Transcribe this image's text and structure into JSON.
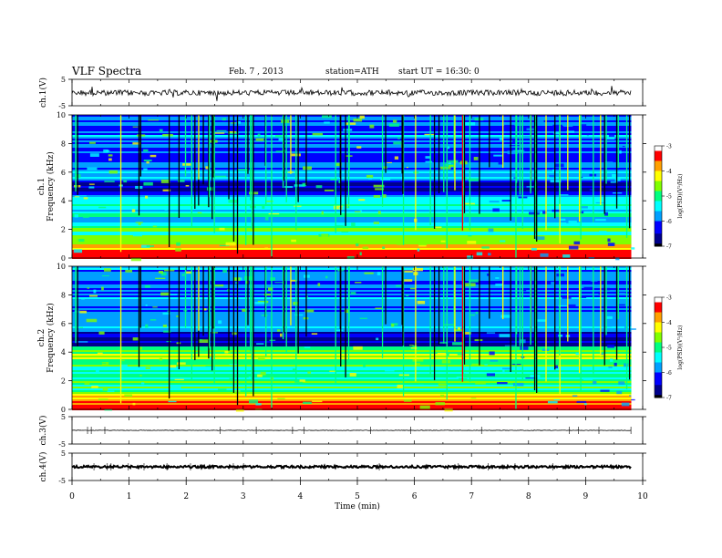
{
  "header": {
    "title": "VLF Spectra",
    "date": "Feb. 7 , 2013",
    "station": "station=ATH",
    "start": "start UT = 16:30: 0"
  },
  "chart_data": {
    "type": "heatmap",
    "title": "VLF Spectra",
    "xlabel": "Time (min)",
    "xlim": [
      0,
      10
    ],
    "x_ticks": [
      "0",
      "1",
      "2",
      "3",
      "4",
      "5",
      "6",
      "7",
      "8",
      "9",
      "10"
    ],
    "data_end_min": 9.8,
    "panels": [
      {
        "id": "ch1-waveform",
        "kind": "waveform",
        "ylabel": "ch.1(V)",
        "ylim": [
          -5,
          5
        ],
        "y_ticks": [
          "5",
          "-5"
        ],
        "level": -0.1,
        "noise": "high"
      },
      {
        "id": "ch1-spectrogram",
        "kind": "spectrogram",
        "ylabel": "ch.1\nFrequency (kHz)",
        "ylim": [
          0,
          10
        ],
        "y_ticks": [
          "10",
          "8",
          "6",
          "4",
          "2",
          "0"
        ],
        "colorbar": {
          "label": "log(PSD)(V²/Hz)",
          "range": [
            -7,
            -3
          ],
          "ticks": [
            "-3",
            "-4",
            "-5",
            "-6",
            "-7"
          ]
        }
      },
      {
        "id": "ch2-spectrogram",
        "kind": "spectrogram",
        "ylabel": "ch.2\nFrequency (kHz)",
        "ylim": [
          0,
          10
        ],
        "y_ticks": [
          "10",
          "8",
          "6",
          "4",
          "2",
          "0"
        ],
        "colorbar": {
          "label": "log(PSD)(V²/Hz)",
          "range": [
            -7,
            -3
          ],
          "ticks": [
            "-3",
            "-4",
            "-5",
            "-6",
            "-7"
          ]
        }
      },
      {
        "id": "ch3-waveform",
        "kind": "waveform",
        "ylabel": "ch.3(V)",
        "ylim": [
          -5,
          5
        ],
        "y_ticks": [
          "5",
          "-5"
        ],
        "level": 0.0,
        "noise": "low"
      },
      {
        "id": "ch4-waveform",
        "kind": "waveform",
        "ylabel": "ch.4(V)",
        "ylim": [
          -5,
          5
        ],
        "y_ticks": [
          "5",
          "-5"
        ],
        "level": 0.0,
        "noise": "thick"
      }
    ]
  },
  "colors": {
    "colormap": [
      "#000000",
      "#00008c",
      "#0000ff",
      "#00a0ff",
      "#00ffff",
      "#00ff80",
      "#80ff00",
      "#ffff00",
      "#ffa000",
      "#ff0000",
      "#ffffff"
    ],
    "axis": "#000000",
    "trace": "#000000"
  }
}
